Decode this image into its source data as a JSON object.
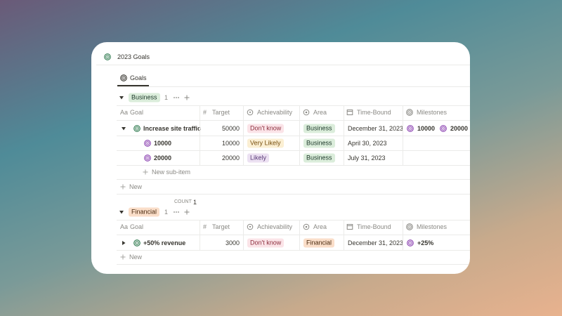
{
  "page": {
    "title": "2023 Goals",
    "view_tab": "Goals"
  },
  "columns": {
    "goal_icon": "Aa",
    "goal": "Goal",
    "target": "Target",
    "achievability": "Achievability",
    "area": "Area",
    "time_bound": "Time-Bound",
    "milestones": "Milestones"
  },
  "groups": [
    {
      "name": "Business",
      "count": 1,
      "rows": [
        {
          "goal": "Increase site traffic",
          "target": 50000,
          "achievability": "Don't know",
          "area": "Business",
          "time_bound": "December 31, 2023",
          "milestones": [
            "10000",
            "20000"
          ],
          "sub_items": [
            {
              "goal": "10000",
              "target": 10000,
              "achievability": "Very Likely",
              "area": "Business",
              "time_bound": "April 30, 2023"
            },
            {
              "goal": "20000",
              "target": 20000,
              "achievability": "Likely",
              "area": "Business",
              "time_bound": "July 31, 2023"
            }
          ]
        }
      ],
      "new_sub_item": "New sub-item",
      "new": "New",
      "footer_label": "COUNT",
      "footer_value": 1
    },
    {
      "name": "Financial",
      "count": 1,
      "rows": [
        {
          "goal": "+50% revenue",
          "target": 3000,
          "achievability": "Don't know",
          "area": "Financial",
          "time_bound": "December 31, 2023",
          "milestones": [
            "+25%"
          ]
        }
      ],
      "new": "New"
    }
  ]
}
